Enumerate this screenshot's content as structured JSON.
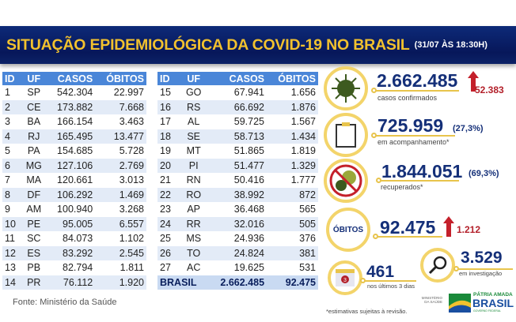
{
  "header": {
    "title": "SITUAÇÃO EPIDEMIOLÓGICA DA COVID-19 NO BRASIL",
    "datetime": "(31/07 ÀS 18:30H)"
  },
  "table": {
    "columns": [
      "ID",
      "UF",
      "CASOS",
      "ÓBITOS"
    ],
    "left": [
      [
        "1",
        "SP",
        "542.304",
        "22.997"
      ],
      [
        "2",
        "CE",
        "173.882",
        "7.668"
      ],
      [
        "3",
        "BA",
        "166.154",
        "3.463"
      ],
      [
        "4",
        "RJ",
        "165.495",
        "13.477"
      ],
      [
        "5",
        "PA",
        "154.685",
        "5.728"
      ],
      [
        "6",
        "MG",
        "127.106",
        "2.769"
      ],
      [
        "7",
        "MA",
        "120.661",
        "3.013"
      ],
      [
        "8",
        "DF",
        "106.292",
        "1.469"
      ],
      [
        "9",
        "AM",
        "100.940",
        "3.268"
      ],
      [
        "10",
        "PE",
        "95.005",
        "6.557"
      ],
      [
        "11",
        "SC",
        "84.073",
        "1.102"
      ],
      [
        "12",
        "ES",
        "83.292",
        "2.545"
      ],
      [
        "13",
        "PB",
        "82.794",
        "1.811"
      ],
      [
        "14",
        "PR",
        "76.112",
        "1.920"
      ]
    ],
    "right": [
      [
        "15",
        "GO",
        "67.941",
        "1.656"
      ],
      [
        "16",
        "RS",
        "66.692",
        "1.876"
      ],
      [
        "17",
        "AL",
        "59.725",
        "1.567"
      ],
      [
        "18",
        "SE",
        "58.713",
        "1.434"
      ],
      [
        "19",
        "MT",
        "51.865",
        "1.819"
      ],
      [
        "20",
        "PI",
        "51.477",
        "1.329"
      ],
      [
        "21",
        "RN",
        "50.416",
        "1.777"
      ],
      [
        "22",
        "RO",
        "38.992",
        "872"
      ],
      [
        "23",
        "AP",
        "36.468",
        "565"
      ],
      [
        "24",
        "RR",
        "32.016",
        "505"
      ],
      [
        "25",
        "MS",
        "24.936",
        "376"
      ],
      [
        "26",
        "TO",
        "24.824",
        "381"
      ],
      [
        "27",
        "AC",
        "19.625",
        "531"
      ]
    ],
    "total": {
      "label": "BRASIL",
      "casos": "2.662.485",
      "obitos": "92.475"
    }
  },
  "source": "Fonte: Ministério da Saúde",
  "stats": {
    "confirmed": {
      "value": "2.662.485",
      "label": "casos confirmados",
      "increase": "52.383",
      "icon": "virus-icon"
    },
    "monitoring": {
      "value": "725.959",
      "pct": "(27,3%)",
      "label": "em acompanhamento*",
      "icon": "clipboard-icon"
    },
    "recovered": {
      "value": "1.844.051",
      "pct": "(69,3%)",
      "label": "recuperados*",
      "icon": "no-virus-icon"
    },
    "deaths": {
      "badge": "ÓBITOS",
      "value": "92.475",
      "increase": "1.212"
    },
    "investigation": {
      "value": "3.529",
      "label": "em investigação",
      "icon": "magnifier-icon"
    },
    "last3": {
      "value": "461",
      "label": "nos últimos 3 dias",
      "icon": "calendar-icon",
      "calendar_day": "3"
    }
  },
  "footnote": "*estimativas sujeitas à revisão.",
  "logos": {
    "ministry": "MINISTÉRIO DA SAÚDE",
    "gov_line1": "PÁTRIA AMADA",
    "gov_line2": "BRASIL",
    "gov_line3": "GOVERNO FEDERAL"
  },
  "colors": {
    "banner": "#07175a",
    "title": "#f2c12e",
    "header": "#4a86d8",
    "value": "#142f78",
    "increase": "#b3202a",
    "ring": "#f3d46a"
  }
}
